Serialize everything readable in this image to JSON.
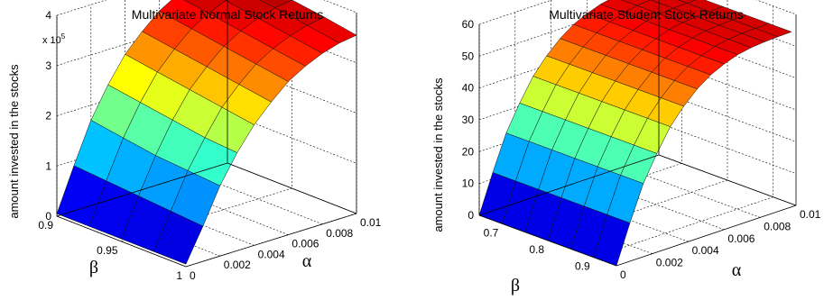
{
  "chart_data": [
    {
      "type": "surface",
      "title": "Multivariate Normal Stock Returns",
      "zlabel": "amount invested in the stocks",
      "xlabel": "β",
      "ylabel": "α",
      "z_multiplier_label": "x 10",
      "z_multiplier_exponent": "5",
      "beta_ticks": [
        "1",
        "0.95",
        "0.9"
      ],
      "alpha_ticks": [
        "0",
        "0.002",
        "0.004",
        "0.006",
        "0.008",
        "0.01"
      ],
      "z_ticks": [
        "0",
        "1",
        "2",
        "3",
        "4"
      ],
      "beta_range": [
        0.9,
        1.0
      ],
      "alpha_range": [
        0,
        0.01
      ],
      "z_range": [
        0,
        4
      ],
      "grid": true,
      "colormap": "jet",
      "beta": [
        0.9,
        0.925,
        0.95,
        0.975,
        1.0
      ],
      "alpha": [
        0,
        0.001,
        0.002,
        0.003,
        0.004,
        0.005,
        0.006,
        0.007,
        0.008,
        0.009,
        0.01
      ],
      "z": [
        [
          0.05,
          0.9,
          1.7,
          2.3,
          2.8,
          3.15,
          3.45,
          3.65,
          3.78,
          3.85,
          3.88
        ],
        [
          0.05,
          0.85,
          1.6,
          2.2,
          2.7,
          3.05,
          3.35,
          3.55,
          3.7,
          3.78,
          3.82
        ],
        [
          0.05,
          0.8,
          1.5,
          2.1,
          2.6,
          2.95,
          3.25,
          3.45,
          3.6,
          3.7,
          3.75
        ],
        [
          0.05,
          0.75,
          1.45,
          2.0,
          2.5,
          2.85,
          3.15,
          3.35,
          3.5,
          3.6,
          3.66
        ],
        [
          0.05,
          0.7,
          1.4,
          1.95,
          2.4,
          2.75,
          3.05,
          3.25,
          3.4,
          3.5,
          3.55
        ]
      ]
    },
    {
      "type": "surface",
      "title": "Multivariate  Student Stock Returns",
      "zlabel": "amount invested in the stocks",
      "xlabel": "β",
      "ylabel": "α",
      "beta_ticks": [
        "0.9",
        "0.8",
        "0.7"
      ],
      "alpha_ticks": [
        "0",
        "0.002",
        "0.004",
        "0.006",
        "0.008",
        "0.01"
      ],
      "z_ticks": [
        "0",
        "10",
        "20",
        "30",
        "40",
        "50",
        "60"
      ],
      "beta_range": [
        0.65,
        0.95
      ],
      "alpha_range": [
        0,
        0.01
      ],
      "z_range": [
        0,
        60
      ],
      "grid": true,
      "colormap": "jet",
      "beta": [
        0.65,
        0.7,
        0.75,
        0.8,
        0.85,
        0.9,
        0.95
      ],
      "alpha": [
        0,
        0.00075,
        0.0015,
        0.00225,
        0.003,
        0.00375,
        0.0045,
        0.00525,
        0.006,
        0.00675,
        0.0075,
        0.00825,
        0.009,
        0.00975
      ],
      "z": [
        [
          0,
          12,
          23,
          31,
          38,
          43,
          47,
          50,
          52,
          53.5,
          54.3,
          54.7,
          54.9,
          55
        ],
        [
          0,
          12,
          23,
          31,
          38,
          43,
          47,
          50,
          52,
          53.5,
          54.3,
          54.7,
          54.9,
          55
        ],
        [
          0,
          12,
          23,
          31,
          38,
          43,
          47,
          50,
          52,
          53.5,
          54.3,
          54.7,
          54.9,
          55
        ],
        [
          0,
          12,
          23,
          31,
          38,
          43,
          47,
          50,
          52,
          53.5,
          54.3,
          54.7,
          54.9,
          55
        ],
        [
          0,
          12,
          23,
          31,
          38,
          43,
          47,
          50,
          52,
          53.5,
          54.3,
          54.7,
          54.9,
          55
        ],
        [
          0,
          12,
          23,
          31,
          38,
          43,
          47,
          50,
          52,
          53.5,
          54.3,
          54.7,
          54.9,
          55
        ],
        [
          0,
          12,
          23,
          31,
          38,
          43,
          47,
          50,
          52,
          53.5,
          54.3,
          54.7,
          54.9,
          55
        ]
      ]
    }
  ]
}
